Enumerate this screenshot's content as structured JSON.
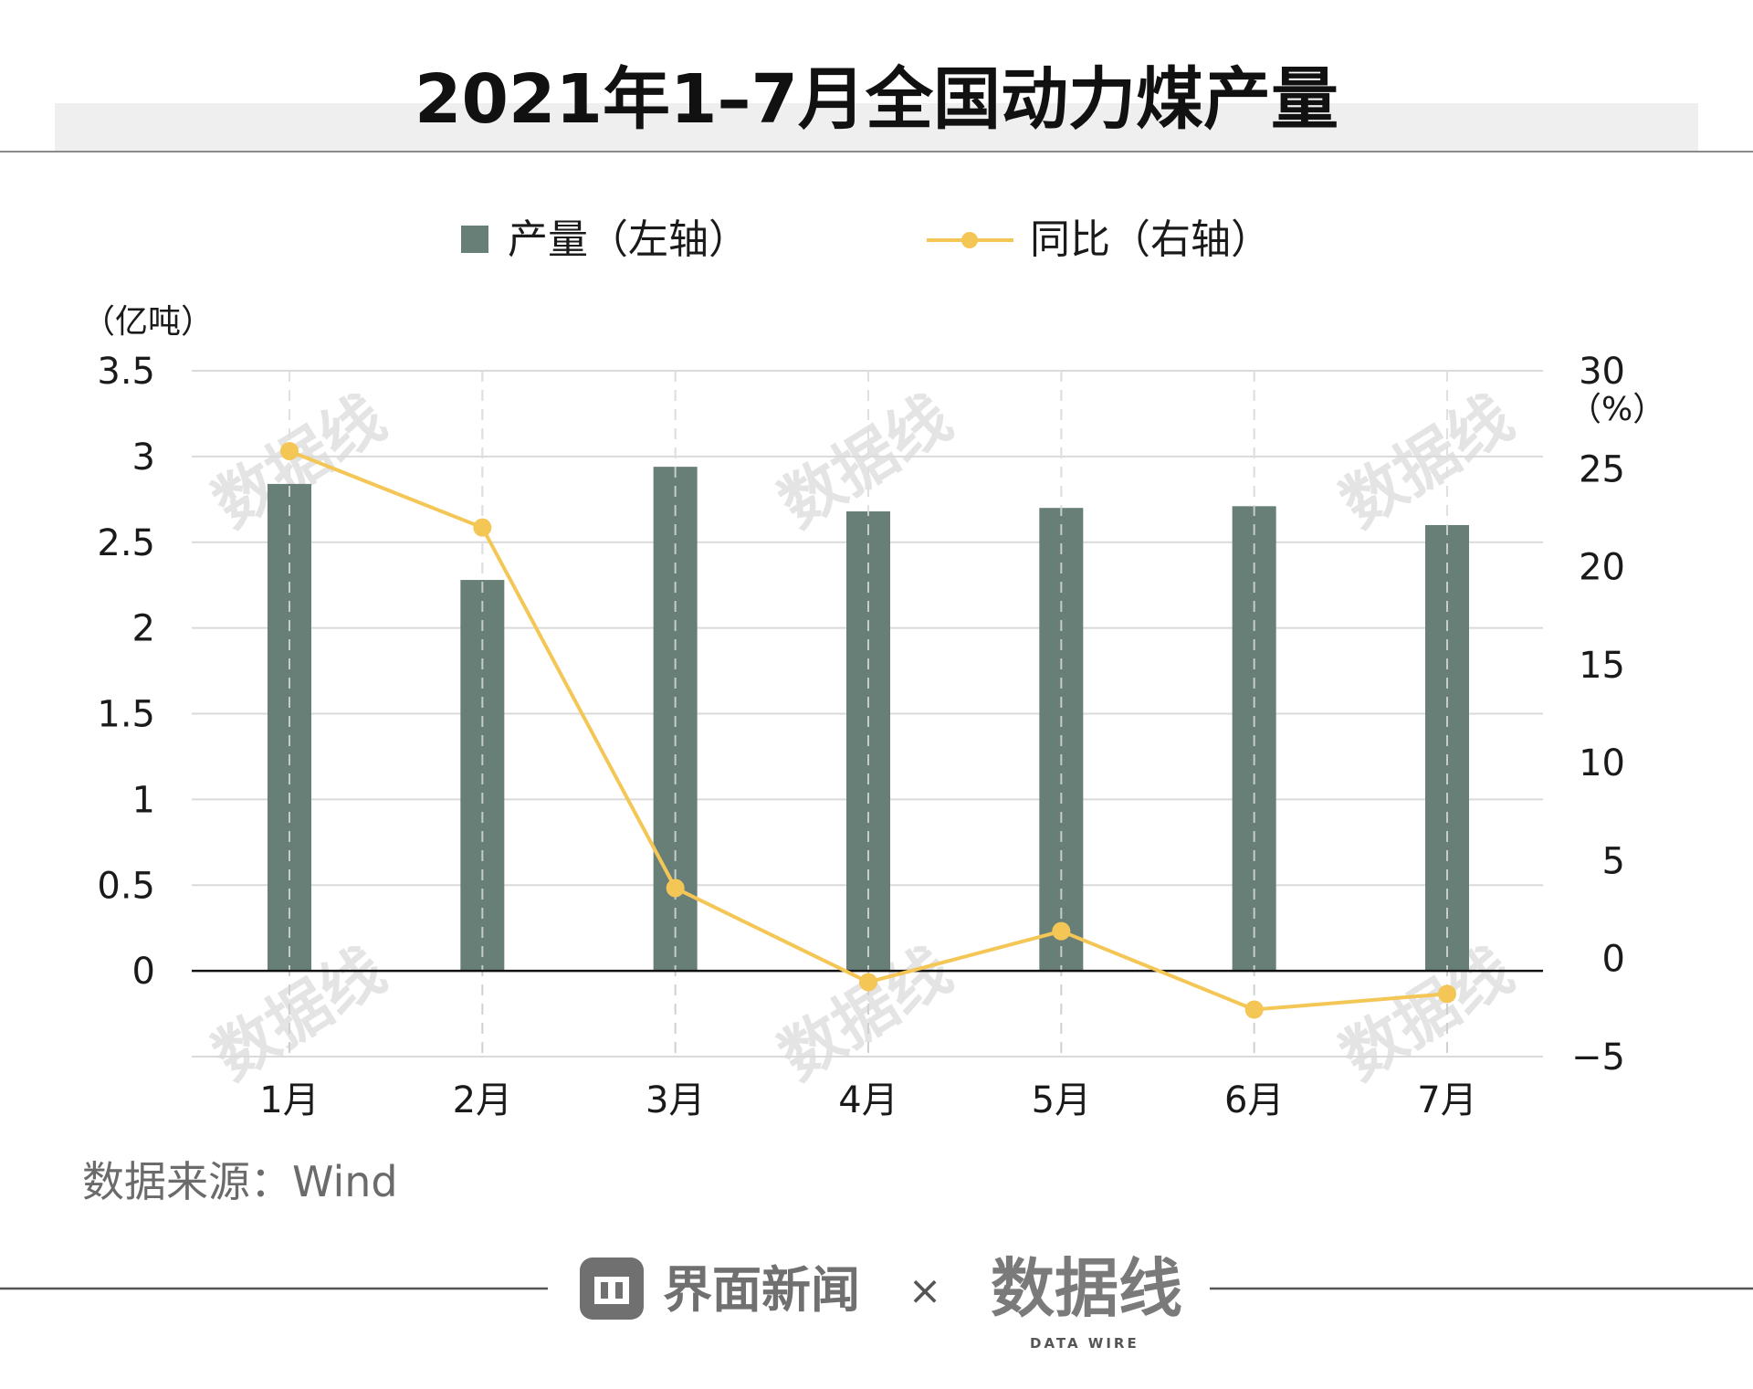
{
  "header": {
    "title": "2021年1–7月全国动力煤产量"
  },
  "chart_data": {
    "type": "bar",
    "categories": [
      "1月",
      "2月",
      "3月",
      "4月",
      "5月",
      "6月",
      "7月"
    ],
    "series": [
      {
        "name": "产量（左轴）",
        "type": "bar",
        "axis": "left",
        "values": [
          2.84,
          2.28,
          2.94,
          2.68,
          2.7,
          2.71,
          2.6
        ]
      },
      {
        "name": "同比（右轴）",
        "type": "line",
        "axis": "right",
        "values": [
          25.9,
          22.0,
          3.6,
          -1.2,
          1.4,
          -2.6,
          -1.8
        ]
      }
    ],
    "left_axis": {
      "unit_label": "（亿吨）",
      "ylim": [
        -0.5,
        3.5
      ],
      "ticks": [
        0,
        0.5,
        1,
        1.5,
        2,
        2.5,
        3,
        3.5
      ]
    },
    "right_axis": {
      "unit_label": "（%）",
      "ylim": [
        -5,
        30
      ],
      "ticks": [
        -5,
        0,
        5,
        10,
        15,
        20,
        25,
        30
      ]
    },
    "grid": true,
    "legend_position": "top-center"
  },
  "colors": {
    "bar": "#687f78",
    "line": "#f4c655",
    "grid": "#dadada",
    "text": "#1a1a1a",
    "muted": "#6b6b6b"
  },
  "footer": {
    "source": "数据来源：Wind",
    "brand_left": "界面新闻",
    "separator": "×",
    "brand_right": "数据线",
    "brand_right_sub": "DATA WIRE"
  },
  "watermark": "数据线"
}
